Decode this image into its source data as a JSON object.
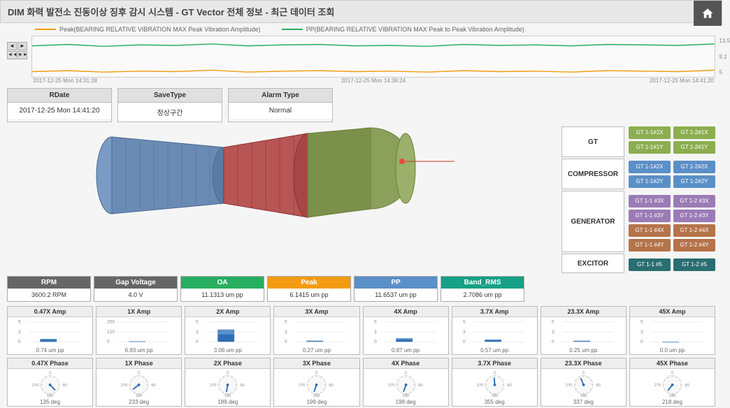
{
  "header": {
    "title": "DIM  화력 발전소 진동이상 징후 감시 시스템 - GT Vector 전체 정보 - 최근 데이터 조회"
  },
  "legend": {
    "peak": {
      "label": "Peak(BEARING RELATIVE VIBRATION MAX Peak Vibration Amplitude)",
      "color": "#f39c12"
    },
    "pp": {
      "label": "PP(BEARING RELATIVE VIBRATION MAX Peak to Peak Vibration Amplitude)",
      "color": "#27ae60"
    }
  },
  "topChart": {
    "yMax": 13.5,
    "yMid": 9.2,
    "yMin": 5.0,
    "xLabels": [
      "2017-12-25 Mon 14:31:28",
      "2017-12-25 Mon 14:36:24",
      "2017-12-25 Mon 14:41:20"
    ],
    "peakSeries": [
      6.1,
      6.3,
      6.0,
      6.2,
      6.1,
      6.4,
      6.0,
      6.2,
      6.3,
      6.1,
      6.2,
      6.0,
      6.3,
      6.1,
      6.2,
      6.0,
      6.3,
      6.2,
      6.1,
      6.4
    ],
    "ppSeries": [
      11.5,
      11.8,
      11.4,
      11.7,
      11.6,
      11.9,
      11.5,
      11.7,
      11.8,
      11.5,
      11.6,
      11.4,
      11.8,
      11.6,
      11.7,
      11.5,
      11.8,
      11.7,
      11.6,
      11.9
    ],
    "peakColor": "#f39c12",
    "ppColor": "#27ae60"
  },
  "info": {
    "rdate": {
      "h": "RDate",
      "v": "2017-12-25 Mon 14:41:20"
    },
    "savetype": {
      "h": "SaveType",
      "v": "정상구간"
    },
    "alarmtype": {
      "h": "Alarm Type",
      "v": "Normal"
    }
  },
  "categories": {
    "gt": "GT",
    "comp": "COMPRESSOR",
    "gen": "GENERATOR",
    "exc": "EXCITOR"
  },
  "sensors": {
    "colors": {
      "green": "#8bae4f",
      "blue": "#5b8fc7",
      "purple": "#9b7bb5",
      "brown": "#b5734a",
      "teal": "#2a6e72"
    },
    "rows": [
      [
        {
          "l": "GT 1-1#1X",
          "c": "green"
        },
        {
          "l": "GT 1-2#1X",
          "c": "green"
        }
      ],
      [
        {
          "l": "GT 1-1#1Y",
          "c": "green"
        },
        {
          "l": "GT 1-2#1Y",
          "c": "green"
        }
      ],
      [
        {
          "l": "GT 1-1#2X",
          "c": "blue"
        },
        {
          "l": "GT 1-2#2X",
          "c": "blue"
        }
      ],
      [
        {
          "l": "GT 1-1#2Y",
          "c": "blue"
        },
        {
          "l": "GT 1-2#2Y",
          "c": "blue"
        }
      ],
      [
        {
          "l": "GT 1-1 #3X",
          "c": "purple"
        },
        {
          "l": "GT 1-2 #3X",
          "c": "purple"
        }
      ],
      [
        {
          "l": "GT 1-1 #3Y",
          "c": "purple"
        },
        {
          "l": "GT 1-2 #3Y",
          "c": "purple"
        }
      ],
      [
        {
          "l": "GT 1-1 #4X",
          "c": "brown"
        },
        {
          "l": "GT 1-2 #4X",
          "c": "brown"
        }
      ],
      [
        {
          "l": "GT 1-1 #4Y",
          "c": "brown"
        },
        {
          "l": "GT 1-2 #4Y",
          "c": "brown"
        }
      ],
      [
        {
          "l": "GT 1-1 #5",
          "c": "teal"
        },
        {
          "l": "GT 1-2 #5",
          "c": "teal"
        }
      ]
    ]
  },
  "metrics": [
    {
      "h": "RPM",
      "v": "3600.2 RPM",
      "c": "#666666"
    },
    {
      "h": "Gap Voltage",
      "v": "4.0 V",
      "c": "#666666"
    },
    {
      "h": "OA",
      "v": "11.1313 um pp",
      "c": "#27ae60"
    },
    {
      "h": "Peak",
      "v": "6.1415 um pp",
      "c": "#f39c12"
    },
    {
      "h": "PP",
      "v": "11.6537 um pp",
      "c": "#5b8fc7"
    },
    {
      "h": "Band_RMS",
      "v": "2.7086 um pp",
      "c": "#16a085"
    }
  ],
  "ampCharts": [
    {
      "h": "0.47X Amp",
      "v": "0.74 um pp",
      "bar": 0.74,
      "max": 5,
      "ticks": [
        5,
        3,
        0
      ]
    },
    {
      "h": "1X Amp",
      "v": "6.93 um pp",
      "bar": 6.93,
      "max": 250,
      "ticks": [
        250,
        125,
        0
      ]
    },
    {
      "h": "2X Amp",
      "v": "3.06 um pp",
      "bar": 3.06,
      "max": 5,
      "ticks": [
        5,
        3,
        0
      ]
    },
    {
      "h": "3X Amp",
      "v": "0.27 um pp",
      "bar": 0.27,
      "max": 5,
      "ticks": [
        5,
        3,
        0
      ]
    },
    {
      "h": "4X Amp",
      "v": "0.87 um pp",
      "bar": 0.87,
      "max": 5,
      "ticks": [
        5,
        3,
        0
      ]
    },
    {
      "h": "3.7X Amp",
      "v": "0.57 um pp",
      "bar": 0.57,
      "max": 5,
      "ticks": [
        5,
        3,
        0
      ]
    },
    {
      "h": "23.3X Amp",
      "v": "0.25 um pp",
      "bar": 0.25,
      "max": 5,
      "ticks": [
        5,
        3,
        0
      ]
    },
    {
      "h": "45X Amp",
      "v": "0.0 um pp",
      "bar": 0.0,
      "max": 5,
      "ticks": [
        5,
        3,
        0
      ]
    }
  ],
  "phaseCharts": [
    {
      "h": "0.47X Phase",
      "v": "135 deg",
      "deg": 135
    },
    {
      "h": "1X Phase",
      "v": "233 deg",
      "deg": 233
    },
    {
      "h": "2X Phase",
      "v": "189 deg",
      "deg": 189
    },
    {
      "h": "3X Phase",
      "v": "199 deg",
      "deg": 199
    },
    {
      "h": "4X Phase",
      "v": "199 deg",
      "deg": 199
    },
    {
      "h": "3.7X Phase",
      "v": "355 deg",
      "deg": 355
    },
    {
      "h": "23.3X Phase",
      "v": "337 deg",
      "deg": 337
    },
    {
      "h": "45X Phase",
      "v": "218 deg",
      "deg": 218
    }
  ],
  "barColor1": "#2e6fb5",
  "barColor2": "#5b8fc7",
  "gaugeLabels": [
    "0",
    "90",
    "180",
    "270"
  ]
}
